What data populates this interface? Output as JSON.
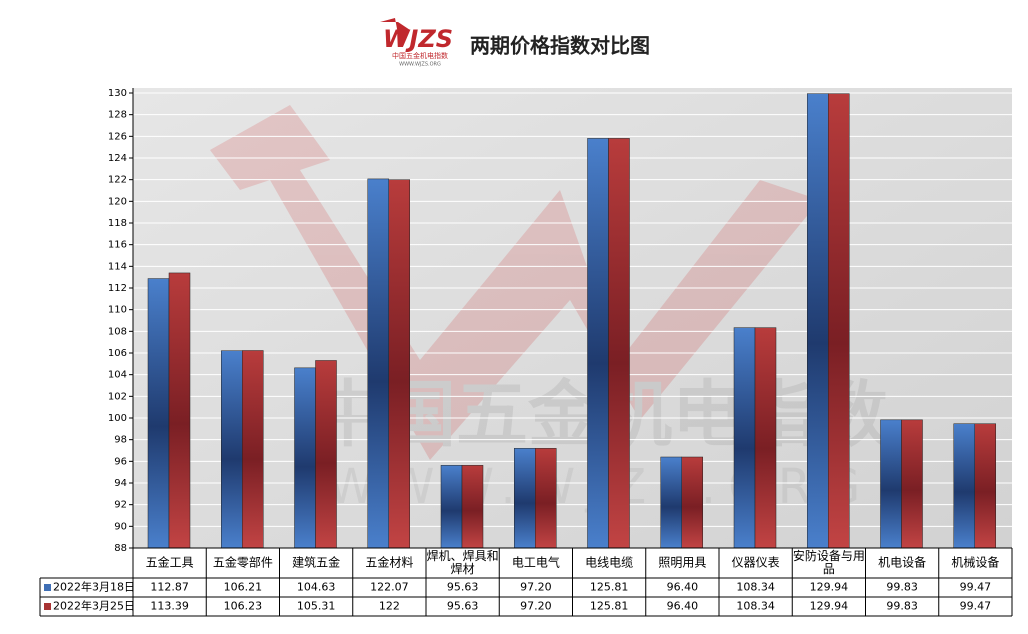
{
  "chart_data": {
    "type": "bar",
    "title": "两期价格指数对比图",
    "logo": {
      "mark": "WJZS",
      "name": "中国五金机电指数",
      "url": "WWW.WJZS.ORG"
    },
    "categories": [
      "五金工具",
      "五金零部件",
      "建筑五金",
      "五金材料",
      "焊机、焊具和焊材",
      "电工电气",
      "电线电缆",
      "照明用具",
      "仪器仪表",
      "安防设备与用品",
      "机电设备",
      "机械设备"
    ],
    "series": [
      {
        "name": "2022年3月18日",
        "color": "#3f6fb5",
        "values": [
          112.87,
          106.21,
          104.63,
          122.07,
          95.63,
          97.2,
          125.81,
          96.4,
          108.34,
          129.94,
          99.83,
          99.47
        ],
        "value_labels": [
          "112.87",
          "106.21",
          "104.63",
          "122.07",
          "95.63",
          "97.20",
          "125.81",
          "96.40",
          "108.34",
          "129.94",
          "99.83",
          "99.47"
        ]
      },
      {
        "name": "2022年3月25日",
        "color": "#a83434",
        "values": [
          113.39,
          106.23,
          105.31,
          122,
          95.63,
          97.2,
          125.81,
          96.4,
          108.34,
          129.94,
          99.83,
          99.47
        ],
        "value_labels": [
          "113.39",
          "106.23",
          "105.31",
          "122",
          "95.63",
          "97.20",
          "125.81",
          "96.40",
          "108.34",
          "129.94",
          "99.83",
          "99.47"
        ]
      }
    ],
    "ylim": [
      88,
      130
    ],
    "yticks": [
      88,
      90,
      92,
      94,
      96,
      98,
      100,
      102,
      104,
      106,
      108,
      110,
      112,
      114,
      116,
      118,
      120,
      122,
      124,
      126,
      128,
      130
    ],
    "grid": true
  }
}
